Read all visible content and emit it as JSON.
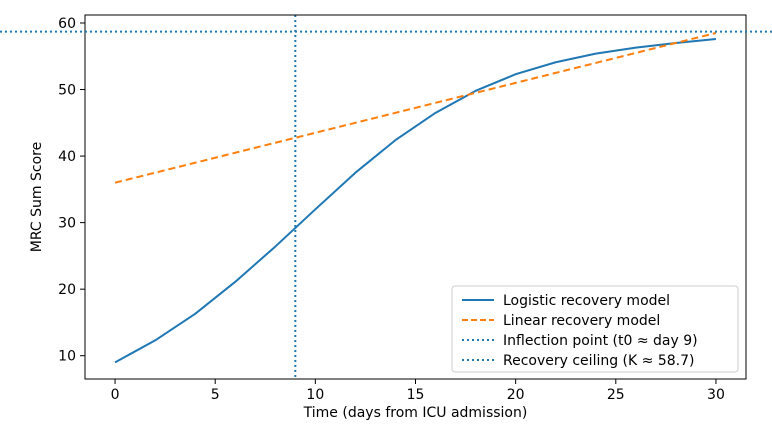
{
  "chart_data": {
    "type": "line",
    "title": "",
    "xlabel": "Time (days from ICU admission)",
    "ylabel": "MRC Sum Score",
    "xlim": [
      -1.5,
      31.5
    ],
    "ylim": [
      6.5,
      61.2
    ],
    "xticks": [
      0,
      5,
      10,
      15,
      20,
      25,
      30
    ],
    "yticks": [
      10,
      20,
      30,
      40,
      50,
      60
    ],
    "grid": false,
    "legend_position": "lower-right",
    "colors": {
      "logistic": "#1f77b4",
      "linear": "#ff7f0e",
      "inflection": "#1f77b4",
      "ceiling": "#1f77b4"
    },
    "x": [
      0,
      2,
      4,
      6,
      8,
      10,
      12,
      14,
      16,
      18,
      20,
      22,
      24,
      26,
      28,
      30
    ],
    "series": [
      {
        "name": "Logistic recovery model",
        "style": "solid",
        "values": [
          9.0,
          12.3,
          16.3,
          21.1,
          26.4,
          32.0,
          37.5,
          42.4,
          46.5,
          49.8,
          52.3,
          54.1,
          55.4,
          56.3,
          57.0,
          57.6
        ]
      },
      {
        "name": "Linear recovery model",
        "style": "dashed",
        "values": [
          36.0,
          37.5,
          39.0,
          40.5,
          42.0,
          43.5,
          45.0,
          46.5,
          48.0,
          49.5,
          51.0,
          52.5,
          54.0,
          55.5,
          57.0,
          58.5
        ]
      }
    ],
    "reference_lines": [
      {
        "name": "Inflection point (t0 ≈ day 9)",
        "orientation": "vertical",
        "value": 9,
        "style": "dotted"
      },
      {
        "name": "Recovery ceiling (K ≈ 58.7)",
        "orientation": "horizontal",
        "value": 58.7,
        "style": "dotted"
      }
    ]
  }
}
